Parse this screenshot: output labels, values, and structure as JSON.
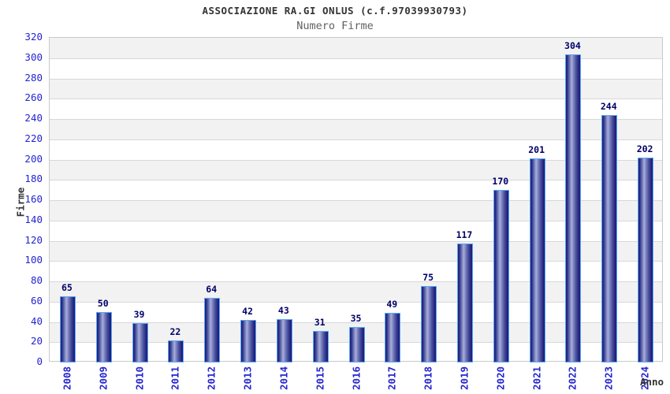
{
  "header": {
    "title": "ASSOCIAZIONE RA.GI ONLUS (c.f.97039930793)",
    "subtitle": "Numero Firme"
  },
  "chart_data": {
    "type": "bar",
    "title": "ASSOCIAZIONE RA.GI ONLUS (c.f.97039930793)",
    "subtitle": "Numero Firme",
    "categories": [
      "2008",
      "2009",
      "2010",
      "2011",
      "2012",
      "2013",
      "2014",
      "2015",
      "2016",
      "2017",
      "2018",
      "2019",
      "2020",
      "2021",
      "2022",
      "2023",
      "2024"
    ],
    "values": [
      65,
      50,
      39,
      22,
      64,
      42,
      43,
      31,
      35,
      49,
      75,
      117,
      170,
      201,
      304,
      244,
      202
    ],
    "xlabel": "Anno",
    "ylabel": "Firme",
    "ylim": [
      0,
      320
    ],
    "ytick_step": 20,
    "grid": true,
    "legend": "none",
    "colors": {
      "tick_label": "#2424cf",
      "value_label": "#00006a",
      "bar_edge": "#1c1c78",
      "bar_highlight": "#a8aedb",
      "bar_border": "#55a9f7",
      "band_gray": "#f2f2f2",
      "gridline": "#d8d8d8",
      "title": "#333333",
      "subtitle": "#616161",
      "axis_title": "#333333"
    }
  }
}
